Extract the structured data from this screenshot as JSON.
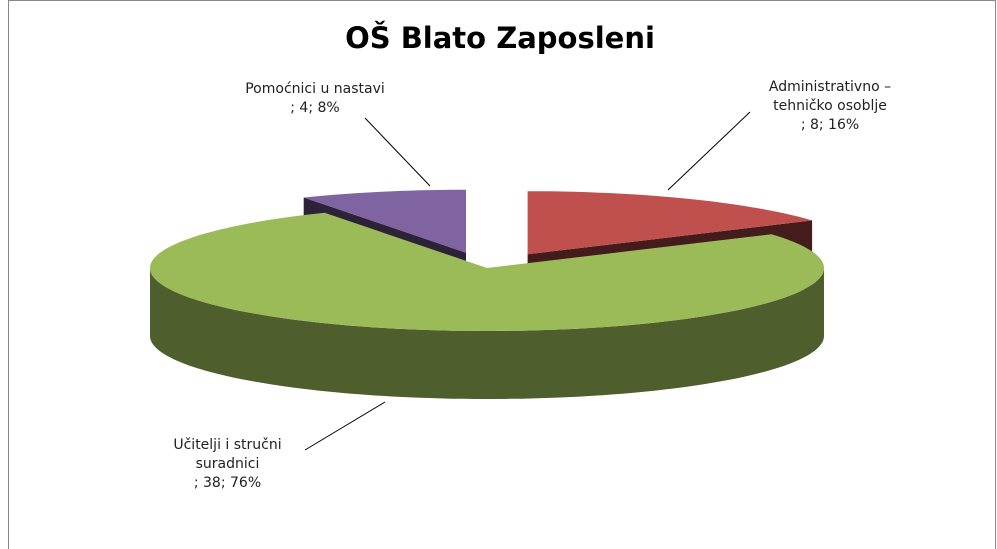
{
  "chart_data": {
    "type": "pie",
    "title": "OŠ Blato   Zaposleni",
    "categories": [
      "Administrativno – tehničko osoblje",
      "Učitelji i stručni suradnici",
      "Pomoćnici u nastavi"
    ],
    "values": [
      8,
      38,
      4
    ],
    "value_labels": [
      "; 8; 16%",
      "; 38; 76%",
      "; 4;  8%"
    ],
    "colors": [
      "#c0504d",
      "#9bbb59",
      "#8064a2"
    ],
    "exploded": [
      true,
      false,
      true
    ]
  }
}
